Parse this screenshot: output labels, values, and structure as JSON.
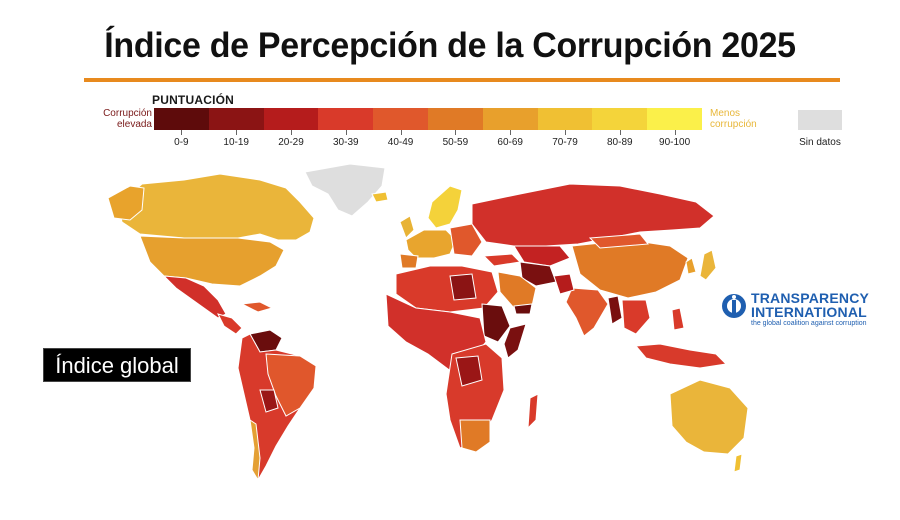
{
  "title": "Índice de Percepción de la Corrupción 2025",
  "legend": {
    "heading": "PUNTUACIÓN",
    "left_label": "Corrupción elevada",
    "right_label": "Menos corrupción",
    "nodata_label": "Sin datos",
    "nodata_color": "#dedede",
    "bins": [
      {
        "label": "0-9",
        "color": "#5e0b0b"
      },
      {
        "label": "10-19",
        "color": "#8b1414"
      },
      {
        "label": "20-29",
        "color": "#b51c1c"
      },
      {
        "label": "30-39",
        "color": "#d93a2a"
      },
      {
        "label": "40-49",
        "color": "#e0582c"
      },
      {
        "label": "50-59",
        "color": "#e07a26"
      },
      {
        "label": "60-69",
        "color": "#e8a02c"
      },
      {
        "label": "70-79",
        "color": "#f0c033"
      },
      {
        "label": "80-89",
        "color": "#f4d43a"
      },
      {
        "label": "90-100",
        "color": "#fbf04a"
      }
    ]
  },
  "badge": "Índice global",
  "logo": {
    "line1": "TRANSPARENCY",
    "line2": "INTERNATIONAL",
    "tagline": "the global coalition against corruption",
    "color": "#1f5fb0"
  },
  "map_colors": {
    "ocean": "#ffffff",
    "border": "#ffffff"
  }
}
